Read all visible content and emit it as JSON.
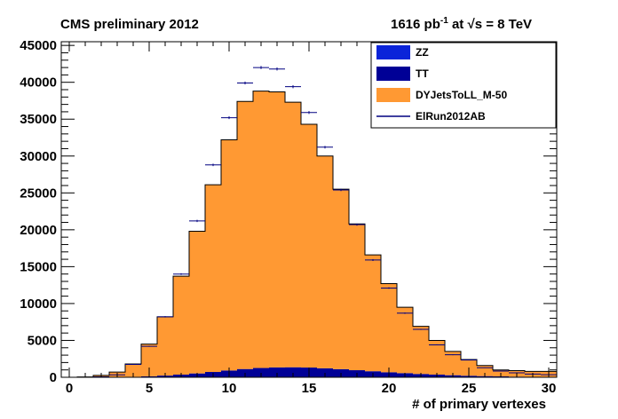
{
  "header": {
    "left": "CMS preliminary 2012",
    "lumi_value": "1616 pb",
    "lumi_exp": "-1",
    "lumi_mid": " at ",
    "sqrt_symbol": "√",
    "lumi_energy": "s = 8 TeV"
  },
  "colors": {
    "ZZ": "#0b24d9",
    "TT": "#000096",
    "DY": "#ff9933",
    "data": "#000080"
  },
  "chart_data": {
    "type": "bar",
    "title": "",
    "xlabel": "# of primary vertexes",
    "ylabel": "",
    "xlim": [
      -0.5,
      30.5
    ],
    "ylim": [
      0,
      45500
    ],
    "bin_width": 1,
    "bin_centers": [
      0,
      1,
      2,
      3,
      4,
      5,
      6,
      7,
      8,
      9,
      10,
      11,
      12,
      13,
      14,
      15,
      16,
      17,
      18,
      19,
      20,
      21,
      22,
      23,
      24,
      25,
      26,
      27,
      28,
      29,
      30
    ],
    "x_ticks": [
      0,
      5,
      10,
      15,
      20,
      25,
      30
    ],
    "y_ticks": [
      0,
      5000,
      10000,
      15000,
      20000,
      25000,
      30000,
      35000,
      40000,
      45000
    ],
    "x_tick_labels": [
      "0",
      "5",
      "10",
      "15",
      "20",
      "25",
      "30"
    ],
    "y_tick_labels": [
      "0",
      "5000",
      "10000",
      "15000",
      "20000",
      "25000",
      "30000",
      "35000",
      "40000",
      "45000"
    ],
    "legend_position": "top-right",
    "legend": [
      {
        "label": "ZZ",
        "style": "fill",
        "color": "#0b24d9"
      },
      {
        "label": "TT",
        "style": "fill",
        "color": "#000096"
      },
      {
        "label": "DYJetsToLL_M-50",
        "style": "fill",
        "color": "#ff9933"
      },
      {
        "label": "ElRun2012AB",
        "style": "line",
        "color": "#000080"
      }
    ],
    "stack_series": [
      {
        "name": "TT",
        "values": [
          0,
          0,
          10,
          30,
          70,
          130,
          230,
          360,
          520,
          720,
          920,
          1120,
          1260,
          1340,
          1360,
          1320,
          1220,
          1100,
          960,
          820,
          680,
          560,
          450,
          360,
          280,
          210,
          160,
          120,
          90,
          60,
          40
        ]
      },
      {
        "name": "ZZ",
        "values": [
          0,
          0,
          0,
          0,
          0,
          0,
          0,
          0,
          0,
          0,
          0,
          0,
          0,
          0,
          0,
          0,
          0,
          0,
          0,
          0,
          0,
          0,
          0,
          0,
          0,
          0,
          0,
          0,
          0,
          0,
          0
        ]
      },
      {
        "name": "DYJetsToLL_M-50",
        "values": [
          0,
          50,
          250,
          680,
          1730,
          4370,
          7970,
          13340,
          19280,
          25380,
          31280,
          36280,
          37540,
          37360,
          35940,
          32980,
          28780,
          24400,
          19840,
          15780,
          12020,
          8940,
          6450,
          4640,
          3220,
          2190,
          1440,
          880,
          810,
          740,
          760
        ]
      }
    ],
    "data_series": {
      "name": "ElRun2012AB",
      "values": [
        0,
        0,
        60,
        330,
        1750,
        4200,
        8200,
        14000,
        21200,
        28800,
        35200,
        39900,
        42000,
        41800,
        39400,
        35900,
        31200,
        25400,
        20700,
        15900,
        12100,
        8700,
        6500,
        4400,
        3050,
        2350,
        1300,
        850,
        600,
        440,
        350
      ]
    }
  }
}
